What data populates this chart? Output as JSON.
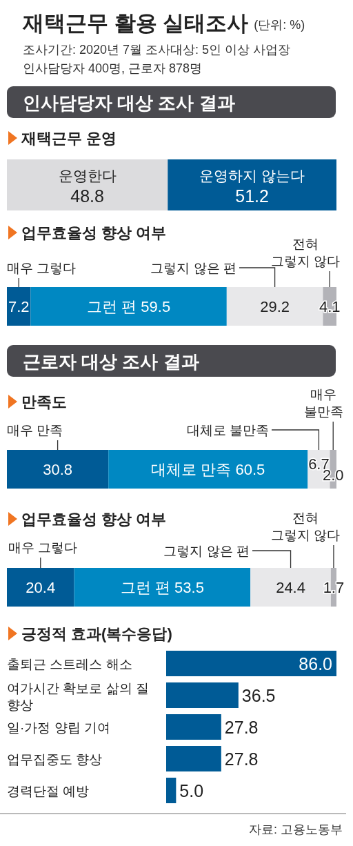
{
  "chart_data": [
    {
      "type": "other",
      "title": "재택근무 활용 실태조사",
      "subtitle": "(단위: %)",
      "annotations": [
        "조사기간: 2020년 7월  조사대상: 5인 이상 사업장 인사담당자 400명, 근로자 878명",
        "인사담당자 대상 조사 결과"
      ]
    },
    {
      "type": "bar",
      "orientation": "horizontal",
      "stacked": true,
      "title": "재택근무 운영",
      "categories": [
        null
      ],
      "series": [
        {
          "name": "운영한다",
          "color": "#dcdcde",
          "values": [
            48.8
          ],
          "value_labels": [
            "48.8"
          ]
        },
        {
          "name": "운영하지 않는다",
          "color": "#005b96",
          "values": [
            51.2
          ],
          "value_labels": [
            "51.2"
          ]
        }
      ]
    },
    {
      "type": "bar",
      "orientation": "horizontal",
      "stacked": true,
      "title": "업무효율성 향상 여부",
      "categories": [
        null
      ],
      "series": [
        {
          "name": "매우 그렇다",
          "color": "#005b96",
          "values": [
            7.2
          ],
          "value_labels": [
            "7.2"
          ]
        },
        {
          "name": "그런 편",
          "color": "#0088c2",
          "values": [
            59.5
          ],
          "value_labels": [
            "59.5"
          ]
        },
        {
          "name": "그렇지 않은 편",
          "color": "#e8e8ea",
          "values": [
            29.2
          ],
          "value_labels": [
            "29.2"
          ]
        },
        {
          "name": "전혀 그렇지 않다",
          "color": "#b3b3b8",
          "values": [
            4.1
          ],
          "value_labels": [
            "4.1"
          ]
        }
      ]
    },
    {
      "type": "bar",
      "orientation": "horizontal",
      "stacked": true,
      "title": "만족도",
      "annotations": [
        "근로자 대상 조사 결과"
      ],
      "categories": [
        null
      ],
      "series": [
        {
          "name": "매우 만족",
          "color": "#005b96",
          "values": [
            30.8
          ],
          "value_labels": [
            "30.8"
          ]
        },
        {
          "name": "대체로 만족",
          "color": "#0088c2",
          "values": [
            60.5
          ],
          "value_labels": [
            "60.5"
          ]
        },
        {
          "name": "대체로 불만족",
          "color": "#e8e8ea",
          "values": [
            6.7
          ],
          "value_labels": [
            "6.7"
          ]
        },
        {
          "name": "매우 불만족",
          "color": "#b3b3b8",
          "values": [
            2.0
          ],
          "value_labels": [
            "2.0"
          ]
        }
      ]
    },
    {
      "type": "bar",
      "orientation": "horizontal",
      "stacked": true,
      "title": "업무효율성 향상 여부",
      "categories": [
        null
      ],
      "series": [
        {
          "name": "매우 그렇다",
          "color": "#005b96",
          "values": [
            20.4
          ],
          "value_labels": [
            "20.4"
          ]
        },
        {
          "name": "그런 편",
          "color": "#0088c2",
          "values": [
            53.5
          ],
          "value_labels": [
            "53.5"
          ]
        },
        {
          "name": "그렇지 않은 편",
          "color": "#e8e8ea",
          "values": [
            24.4
          ],
          "value_labels": [
            "24.4"
          ]
        },
        {
          "name": "전혀 그렇지 않다",
          "color": "#b3b3b8",
          "values": [
            1.7
          ],
          "value_labels": [
            "1.7"
          ]
        }
      ]
    },
    {
      "type": "bar",
      "orientation": "horizontal",
      "title": "긍정적 효과(복수응답)",
      "annotations": [
        "자료: 고용노동부"
      ],
      "categories": [
        "출퇴근 스트레스 해소",
        "여가시간 확보로 삶의 질 향상",
        "일·가정 양립 기여",
        "업무집중도 향상",
        "경력단절 예방"
      ],
      "values": [
        86.0,
        36.5,
        27.8,
        27.8,
        5.0
      ],
      "value_labels": [
        "86.0",
        "36.5",
        "27.8",
        "27.8",
        "5.0"
      ],
      "color": "#005b96"
    }
  ]
}
